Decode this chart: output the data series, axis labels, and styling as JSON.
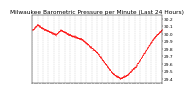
{
  "title": "Milwaukee Barometric Pressure per Minute (Last 24 Hours)",
  "title_fontsize": 4.2,
  "line_color": "#FF0000",
  "background_color": "#FFFFFF",
  "plot_bg_color": "#FFFFFF",
  "grid_color": "#BBBBBB",
  "ylim": [
    29.35,
    30.25
  ],
  "yticks": [
    29.4,
    29.5,
    29.6,
    29.7,
    29.8,
    29.9,
    30.0,
    30.1,
    30.2
  ],
  "num_points": 1440,
  "marker_size": 0.6,
  "tick_fontsize": 3.2,
  "num_gridlines": 25
}
